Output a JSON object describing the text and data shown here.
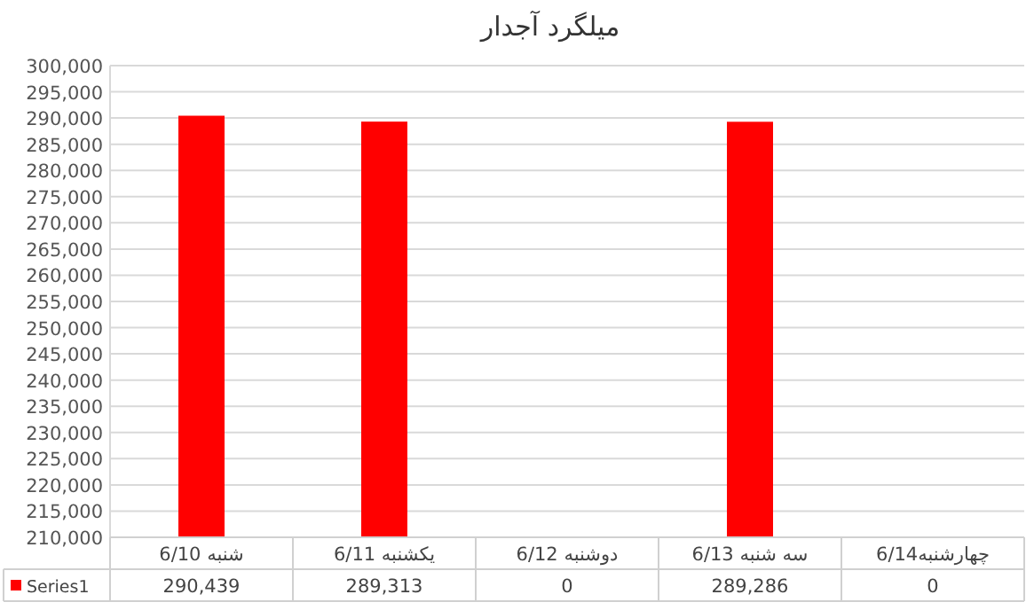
{
  "chart_data": {
    "type": "bar",
    "title": "میلگرد آجدار",
    "categories": [
      "شنبه 6/10",
      "یکشنبه 6/11",
      "دوشنبه 6/12",
      "سه شنبه 6/13",
      "چهارشنبه6/14"
    ],
    "series": [
      {
        "name": "Series1",
        "color": "#ff0000",
        "values": [
          290439,
          289313,
          null,
          289286,
          null
        ],
        "value_labels": [
          "290,439",
          "289,313",
          "0",
          "289,286",
          "0"
        ]
      }
    ],
    "ylim": [
      210000,
      300000
    ],
    "yticks": [
      {
        "value": 210000,
        "label": "210,000"
      },
      {
        "value": 215000,
        "label": "215,000"
      },
      {
        "value": 220000,
        "label": "220,000"
      },
      {
        "value": 225000,
        "label": "225,000"
      },
      {
        "value": 230000,
        "label": "230,000"
      },
      {
        "value": 235000,
        "label": "235,000"
      },
      {
        "value": 240000,
        "label": "240,000"
      },
      {
        "value": 245000,
        "label": "245,000"
      },
      {
        "value": 250000,
        "label": "250,000"
      },
      {
        "value": 255000,
        "label": "255,000"
      },
      {
        "value": 260000,
        "label": "260,000"
      },
      {
        "value": 265000,
        "label": "265,000"
      },
      {
        "value": 270000,
        "label": "270,000"
      },
      {
        "value": 275000,
        "label": "275,000"
      },
      {
        "value": 280000,
        "label": "280,000"
      },
      {
        "value": 285000,
        "label": "285,000"
      },
      {
        "value": 290000,
        "label": "290,000"
      },
      {
        "value": 295000,
        "label": "295,000"
      },
      {
        "value": 300000,
        "label": "300,000"
      }
    ],
    "grid": "y",
    "legend": "bottom"
  }
}
